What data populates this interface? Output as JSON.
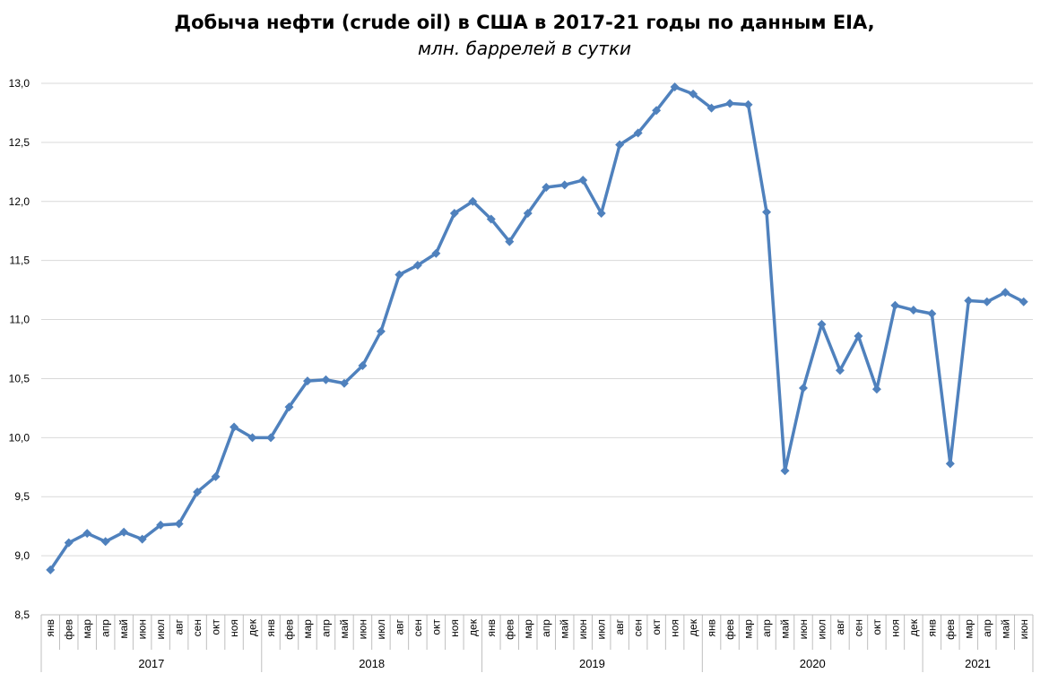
{
  "chart_data": {
    "type": "line",
    "title": "Добыча нефти (crude oil) в США в 2017-21 годы по данным EIA,",
    "subtitle": "млн. баррелей в сутки",
    "ylim": [
      8.5,
      13.0
    ],
    "yticks": [
      "8,5",
      "9,0",
      "9,5",
      "10,0",
      "10,5",
      "11,0",
      "11,5",
      "12,0",
      "12,5",
      "13,0"
    ],
    "grid": true,
    "legend": "none",
    "line_color": "#4F81BD",
    "years": [
      {
        "label": "2017",
        "months": 12
      },
      {
        "label": "2018",
        "months": 12
      },
      {
        "label": "2019",
        "months": 12
      },
      {
        "label": "2020",
        "months": 12
      },
      {
        "label": "2021",
        "months": 6
      }
    ],
    "categories": [
      "янв",
      "фев",
      "мар",
      "апр",
      "май",
      "июн",
      "июл",
      "авг",
      "сен",
      "окт",
      "ноя",
      "дек",
      "янв",
      "фев",
      "мар",
      "апр",
      "май",
      "июн",
      "июл",
      "авг",
      "сен",
      "окт",
      "ноя",
      "дек",
      "янв",
      "фев",
      "мар",
      "апр",
      "май",
      "июн",
      "июл",
      "авг",
      "сен",
      "окт",
      "ноя",
      "дек",
      "янв",
      "фев",
      "мар",
      "апр",
      "май",
      "июн",
      "июл",
      "авг",
      "сен",
      "окт",
      "ноя",
      "дек",
      "янв",
      "фев",
      "мар",
      "апр",
      "май",
      "июн"
    ],
    "series": [
      {
        "values": [
          8.88,
          9.11,
          9.19,
          9.12,
          9.2,
          9.14,
          9.26,
          9.27,
          9.54,
          9.67,
          10.09,
          10.0,
          10.0,
          10.26,
          10.48,
          10.49,
          10.46,
          10.61,
          10.9,
          11.38,
          11.46,
          11.56,
          11.9,
          12.0,
          11.85,
          11.66,
          11.9,
          12.12,
          12.14,
          12.18,
          11.9,
          12.48,
          12.58,
          12.77,
          12.97,
          12.91,
          12.79,
          12.83,
          12.82,
          11.91,
          9.72,
          10.42,
          10.96,
          10.57,
          10.86,
          10.41,
          11.12,
          11.08,
          11.05,
          9.78,
          11.16,
          11.15,
          11.23,
          11.15
        ]
      }
    ]
  }
}
